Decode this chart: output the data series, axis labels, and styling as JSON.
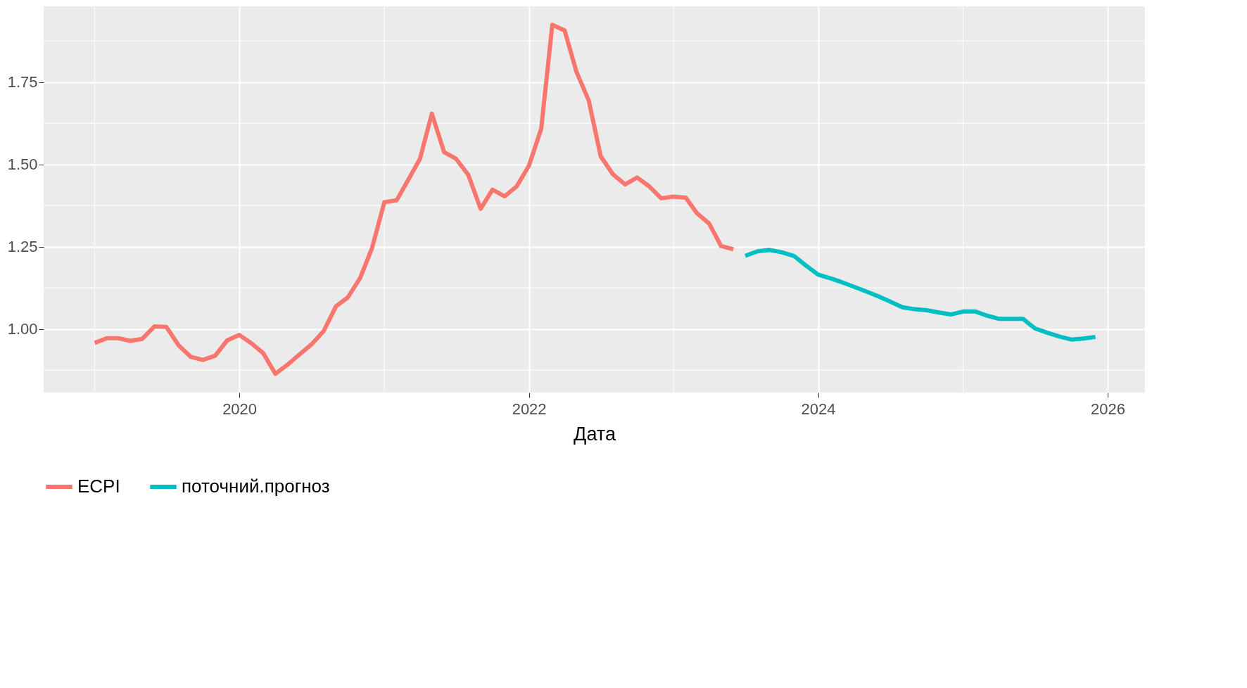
{
  "chart_data": {
    "type": "line",
    "xlabel": "Дата",
    "legend": "bottom",
    "grid": true,
    "line_style": "solid",
    "xlim": [
      "2018-08-25",
      "2026-04-05"
    ],
    "xticks": [
      "2020",
      "2022",
      "2024",
      "2026"
    ],
    "ylim": [
      0.807,
      1.98
    ],
    "yticks": [
      {
        "value": 1,
        "label": "1.00"
      },
      {
        "value": 1.25,
        "label": "1.25"
      },
      {
        "value": 1.5,
        "label": "1.50"
      },
      {
        "value": 1.75,
        "label": "1.75"
      }
    ],
    "series": [
      {
        "name": "ECPI",
        "color": "#f8766d",
        "x": [
          "2019-01",
          "2019-02",
          "2019-03",
          "2019-04",
          "2019-05",
          "2019-06",
          "2019-07",
          "2019-08",
          "2019-09",
          "2019-10",
          "2019-11",
          "2019-12",
          "2020-01",
          "2020-02",
          "2020-03",
          "2020-04",
          "2020-05",
          "2020-06",
          "2020-07",
          "2020-08",
          "2020-09",
          "2020-10",
          "2020-11",
          "2020-12",
          "2021-01",
          "2021-02",
          "2021-03",
          "2021-04",
          "2021-05",
          "2021-06",
          "2021-07",
          "2021-08",
          "2021-09",
          "2021-10",
          "2021-11",
          "2021-12",
          "2022-01",
          "2022-02",
          "2022-03",
          "2022-04",
          "2022-05",
          "2022-06",
          "2022-07",
          "2022-08",
          "2022-09",
          "2022-10",
          "2022-11",
          "2022-12",
          "2023-01",
          "2023-02",
          "2023-03",
          "2023-04",
          "2023-05",
          "2023-06"
        ],
        "values": [
          0.958,
          0.972,
          0.972,
          0.964,
          0.97,
          1.008,
          1.006,
          0.95,
          0.915,
          0.906,
          0.919,
          0.965,
          0.982,
          0.956,
          0.927,
          0.864,
          0.891,
          0.923,
          0.953,
          0.994,
          1.069,
          1.096,
          1.155,
          1.246,
          1.385,
          1.391,
          1.45,
          1.517,
          1.654,
          1.537,
          1.517,
          1.468,
          1.365,
          1.423,
          1.403,
          1.433,
          1.496,
          1.608,
          1.924,
          1.907,
          1.781,
          1.694,
          1.525,
          1.47,
          1.439,
          1.46,
          1.433,
          1.397,
          1.402,
          1.399,
          1.352,
          1.32,
          1.252,
          1.242
        ]
      },
      {
        "name": "поточний.прогноз",
        "color": "#00bfc4",
        "x": [
          "2023-07",
          "2023-08",
          "2023-09",
          "2023-10",
          "2023-11",
          "2023-12",
          "2024-01",
          "2024-02",
          "2024-03",
          "2024-04",
          "2024-05",
          "2024-06",
          "2024-07",
          "2024-08",
          "2024-09",
          "2024-10",
          "2024-11",
          "2024-12",
          "2025-01",
          "2025-02",
          "2025-03",
          "2025-04",
          "2025-05",
          "2025-06",
          "2025-07",
          "2025-08",
          "2025-09",
          "2025-10",
          "2025-11",
          "2025-12"
        ],
        "values": [
          1.222,
          1.236,
          1.24,
          1.233,
          1.222,
          1.193,
          1.165,
          1.154,
          1.142,
          1.128,
          1.114,
          1.099,
          1.083,
          1.066,
          1.06,
          1.057,
          1.05,
          1.044,
          1.053,
          1.053,
          1.041,
          1.031,
          1.031,
          1.031,
          1.002,
          0.989,
          0.977,
          0.968,
          0.971,
          0.976
        ]
      }
    ]
  }
}
